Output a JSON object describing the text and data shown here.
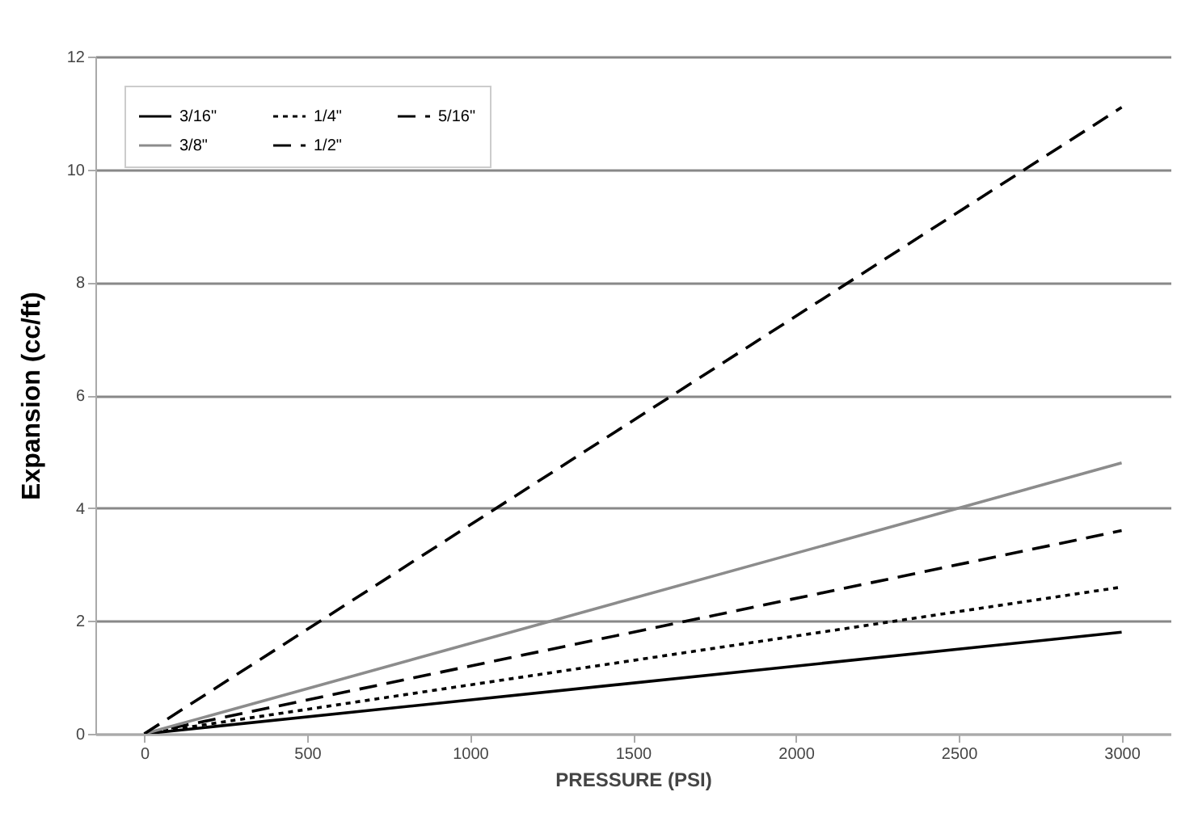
{
  "chart_data": {
    "type": "line",
    "xlabel": "PRESSURE (PSI)",
    "ylabel": "Expansion (cc/ft)",
    "x": [
      0,
      3000
    ],
    "series": [
      {
        "name": "3/16\"",
        "color": "#000000",
        "line_style": "solid",
        "values": [
          0,
          1.8
        ]
      },
      {
        "name": "1/4\"",
        "color": "#000000",
        "line_style": "dotted",
        "values": [
          0,
          2.6
        ]
      },
      {
        "name": "5/16\"",
        "color": "#000000",
        "line_style": "dashed",
        "values": [
          0,
          3.6
        ]
      },
      {
        "name": "3/8\"",
        "color": "#8c8c8c",
        "line_style": "solid",
        "values": [
          0,
          4.8
        ]
      },
      {
        "name": "1/2\"",
        "color": "#000000",
        "line_style": "dashed",
        "values": [
          0,
          11.1
        ]
      }
    ],
    "xlim": [
      -150,
      3150
    ],
    "xticks": [
      0,
      500,
      1000,
      1500,
      2000,
      2500,
      3000
    ],
    "ylim": [
      0,
      12
    ],
    "yticks": [
      0,
      2,
      4,
      6,
      8,
      10,
      12
    ],
    "grid": "y",
    "legend": "top left",
    "marker": "none"
  }
}
